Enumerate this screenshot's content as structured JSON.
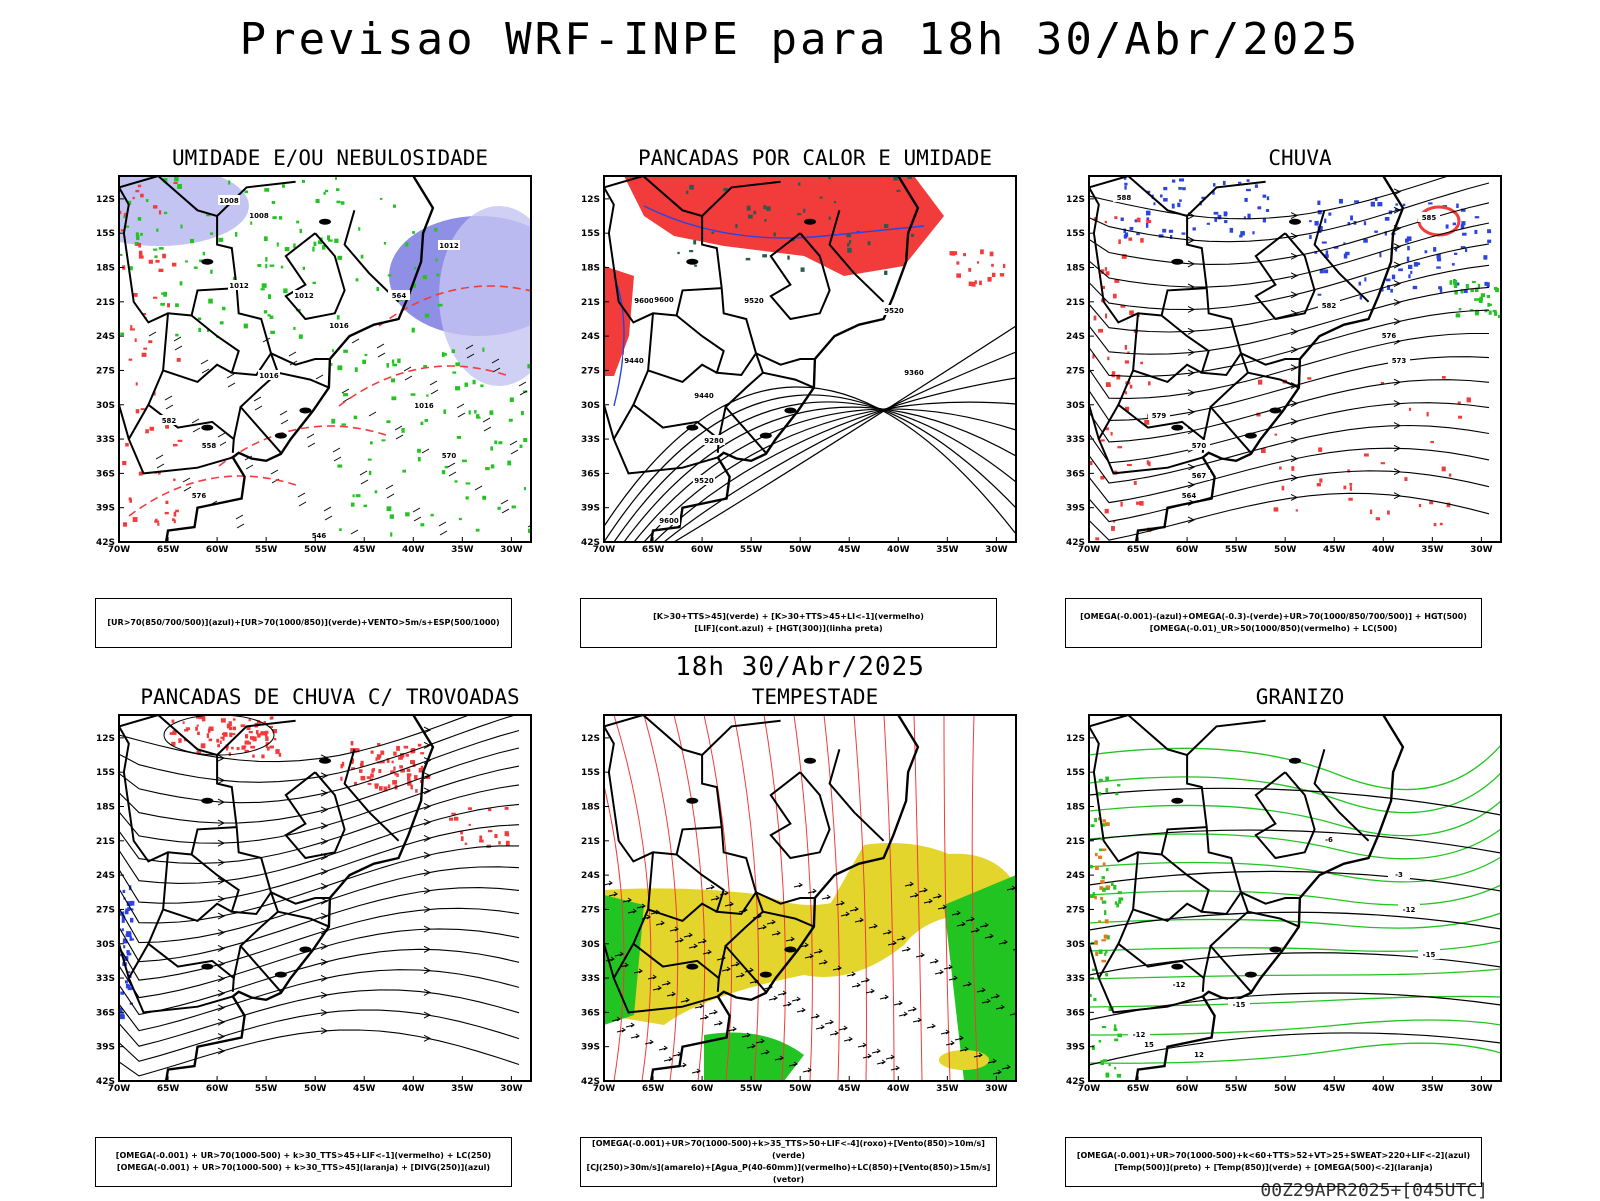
{
  "title": "Previsao WRF-INPE  para 18h 30/Abr/2025",
  "mid_date": "18h 30/Abr/2025",
  "footer": "00Z29APR2025+[045UTC]",
  "lat_ticks": [
    "12S",
    "15S",
    "18S",
    "21S",
    "24S",
    "27S",
    "30S",
    "33S",
    "36S",
    "39S",
    "42S"
  ],
  "lon_ticks": [
    "70W",
    "65W",
    "60W",
    "55W",
    "50W",
    "45W",
    "40W",
    "35W",
    "30W"
  ],
  "colors": {
    "red": "#f23b3b",
    "green": "#22c422",
    "blue": "#2b44e0",
    "yellow": "#e3d52b",
    "lavender": "#8f8fe6",
    "lightlav": "#c4c4f2",
    "darkteal": "#2d5a4e",
    "orange": "#e07a1e"
  },
  "panels": [
    {
      "title": "UMIDADE E/OU NEBULOSIDADE",
      "caption1": "[UR>70(850/700/500)](azul)+[UR>70(1000/850)](verde)+VENTO>5m/s+ESP(500/1000)",
      "caption2": ""
    },
    {
      "title": "PANCADAS POR CALOR E UMIDADE",
      "caption1": "[K>30+TTS>45](verde) + [K>30+TTS>45+LI<-1](vermelho)",
      "caption2": "[LIF](cont.azul) + [HGT(300)](linha preta)"
    },
    {
      "title": "CHUVA",
      "caption1": "[OMEGA(-0.001)-(azul)+OMEGA(-0.3)-(verde)+UR>70(1000/850/700/500)] + HGT(500)",
      "caption2": "[OMEGA(-0.01)_UR>50(1000/850)(vermelho) + LC(500)"
    },
    {
      "title": "PANCADAS DE CHUVA C/ TROVOADAS",
      "caption1": "[OMEGA(-0.001) + UR>70(1000-500) + k>30_TTS>45+LIF<-1](vermelho) + LC(250)",
      "caption2": "[OMEGA(-0.001) + UR>70(1000-500) + k>30_TTS>45](laranja) + [DIVG(250)](azul)"
    },
    {
      "title": "TEMPESTADE",
      "caption1": "[OMEGA(-0.001)+UR>70(1000-500)+k>35_TTS>50+LIF<-4](roxo)+[Vento(850)>10m/s](verde)",
      "caption2": "[CJ(250)>30m/s](amarelo)+[Agua_P(40-60mm)](vermelho)+LC(850)+[Vento(850)>15m/s](vetor)"
    },
    {
      "title": "GRANIZO",
      "caption1": "[OMEGA(-0.001)+UR>70(1000-500)+k<60+TTS>52+VT>25+SWEAT>220+LIF<-2](azul)",
      "caption2": "[Temp(500)](preto) + [Temp(850)](verde) + [OMEGA(500)<-2](laranja)"
    }
  ],
  "contour_labels": {
    "p1": [
      "1008",
      "1008",
      "1012",
      "1012",
      "1012",
      "1016",
      "1016",
      "1016",
      "570",
      "576",
      "582",
      "564",
      "558",
      "546"
    ],
    "p2": [
      "9600",
      "9600",
      "9520",
      "9520",
      "9440",
      "9440",
      "9360",
      "9280",
      "9520",
      "9600"
    ],
    "p3": [
      "588",
      "582",
      "576",
      "573",
      "570",
      "567",
      "564",
      "579",
      "585"
    ],
    "p6": [
      "-6",
      "-3",
      "-12",
      "-15",
      "-12",
      "-15",
      "-12",
      "15",
      "12"
    ]
  }
}
